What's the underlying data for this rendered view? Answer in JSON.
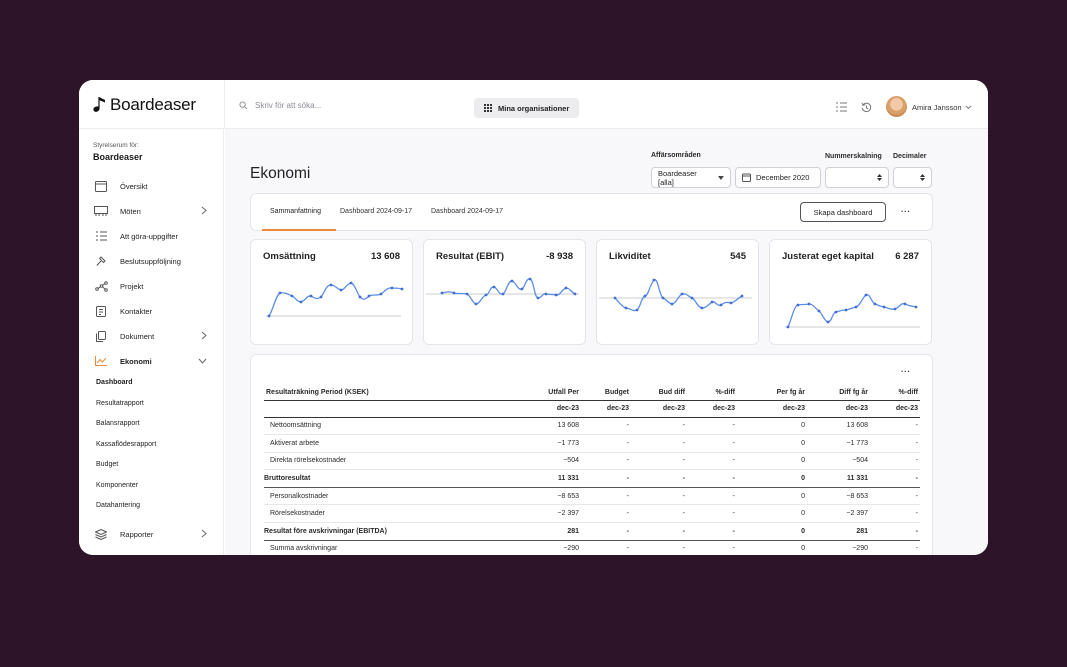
{
  "app": {
    "logo_text": "Boardeaser",
    "search_placeholder": "Skriv för att söka...",
    "org_button": "Mina organisationer",
    "user_name": "Amira Jansson"
  },
  "sidebar": {
    "room_label": "Styrelserum för:",
    "room_name": "Boardeaser",
    "items": [
      {
        "label": "Översikt",
        "icon": "calendar-icon",
        "chevron": false
      },
      {
        "label": "Möten",
        "icon": "meeting-icon",
        "chevron": true
      },
      {
        "label": "Att göra-uppgifter",
        "icon": "checklist-icon",
        "chevron": false
      },
      {
        "label": "Beslutsuppföljning",
        "icon": "gavel-icon",
        "chevron": false
      },
      {
        "label": "Projekt",
        "icon": "network-icon",
        "chevron": false
      },
      {
        "label": "Kontakter",
        "icon": "contacts-icon",
        "chevron": false
      },
      {
        "label": "Dokument",
        "icon": "document-icon",
        "chevron": true
      },
      {
        "label": "Ekonomi",
        "icon": "chart-icon",
        "chevron": true,
        "expanded": true
      },
      {
        "label": "Rapporter",
        "icon": "layers-icon",
        "chevron": true
      }
    ],
    "ekonomi_sub": [
      "Dashboard",
      "Resultatrapport",
      "Balansrapport",
      "Kassaflödesrapport",
      "Budget",
      "Komponenter",
      "Datahantering"
    ]
  },
  "main": {
    "title": "Ekonomi",
    "filters": {
      "area_label": "Affärsområden",
      "area_value": "Boardeaser [alla]",
      "date_value": "December 2020",
      "scale_label": "Nummerskalning",
      "decimals_label": "Decimaler"
    },
    "tabs": [
      "Sammanfattning",
      "Dashboard 2024-09-17",
      "Dashboard 2024-09-17"
    ],
    "create_button": "Skapa dashboard",
    "more": "···"
  },
  "kpis": [
    {
      "title": "Omsättning",
      "value": "13 608"
    },
    {
      "title": "Resultat (EBIT)",
      "value": "-8 938"
    },
    {
      "title": "Likviditet",
      "value": "545"
    },
    {
      "title": "Justerat eget kapital",
      "value": "6 287"
    }
  ],
  "colors": {
    "accent": "#ef8a3c",
    "line": "#5b8ee6",
    "background": "#2e1428"
  },
  "table": {
    "headers": [
      "Resultaträkning Period (KSEK)",
      "Utfall Per",
      "Budget",
      "Bud diff",
      "%-diff",
      "Per fg år",
      "Diff fg år",
      "%-diff"
    ],
    "subheaders": [
      "",
      "dec-23",
      "dec-23",
      "dec-23",
      "dec-23",
      "dec-23",
      "dec-23",
      "dec-23"
    ],
    "rows": [
      {
        "bold": false,
        "cells": [
          "Nettoomsättning",
          "13 608",
          "-",
          "-",
          "-",
          "0",
          "13 608",
          "-"
        ]
      },
      {
        "bold": false,
        "cells": [
          "Aktiverat arbete",
          "−1 773",
          "-",
          "-",
          "-",
          "0",
          "−1 773",
          "-"
        ]
      },
      {
        "bold": false,
        "cells": [
          "Direkta rörelsekostnader",
          "−504",
          "-",
          "-",
          "-",
          "0",
          "−504",
          "-"
        ]
      },
      {
        "bold": true,
        "cells": [
          "Bruttoresultat",
          "11 331",
          "-",
          "-",
          "-",
          "0",
          "11 331",
          "-"
        ]
      },
      {
        "bold": false,
        "cells": [
          "Personalkostnader",
          "−8 653",
          "-",
          "-",
          "-",
          "0",
          "−8 653",
          "-"
        ]
      },
      {
        "bold": false,
        "cells": [
          "Rörelsekostnader",
          "−2 397",
          "-",
          "-",
          "-",
          "0",
          "−2 397",
          "-"
        ]
      },
      {
        "bold": true,
        "cells": [
          "Resultat före avskrivningar (EBITDA)",
          "281",
          "-",
          "-",
          "-",
          "0",
          "281",
          "-"
        ]
      },
      {
        "bold": false,
        "cells": [
          "Summa avskrivningar",
          "−290",
          "-",
          "-",
          "-",
          "0",
          "−290",
          "-"
        ]
      }
    ]
  }
}
